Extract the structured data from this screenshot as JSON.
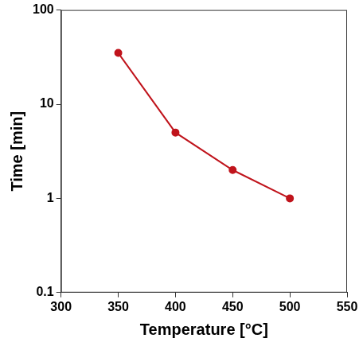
{
  "chart_data": {
    "type": "line",
    "x": [
      350,
      400,
      450,
      500
    ],
    "values": [
      35,
      5,
      2,
      1
    ],
    "color": "#c0141c",
    "marker": "circle",
    "xlabel": "Temperature [°C]",
    "ylabel": "Time [min]",
    "xlim": [
      300,
      550
    ],
    "xticks": [
      300,
      350,
      400,
      450,
      500,
      550
    ],
    "ylim": [
      0.1,
      100
    ],
    "yticks": [
      0.1,
      1,
      10,
      100
    ],
    "log": "y",
    "grid": false
  }
}
